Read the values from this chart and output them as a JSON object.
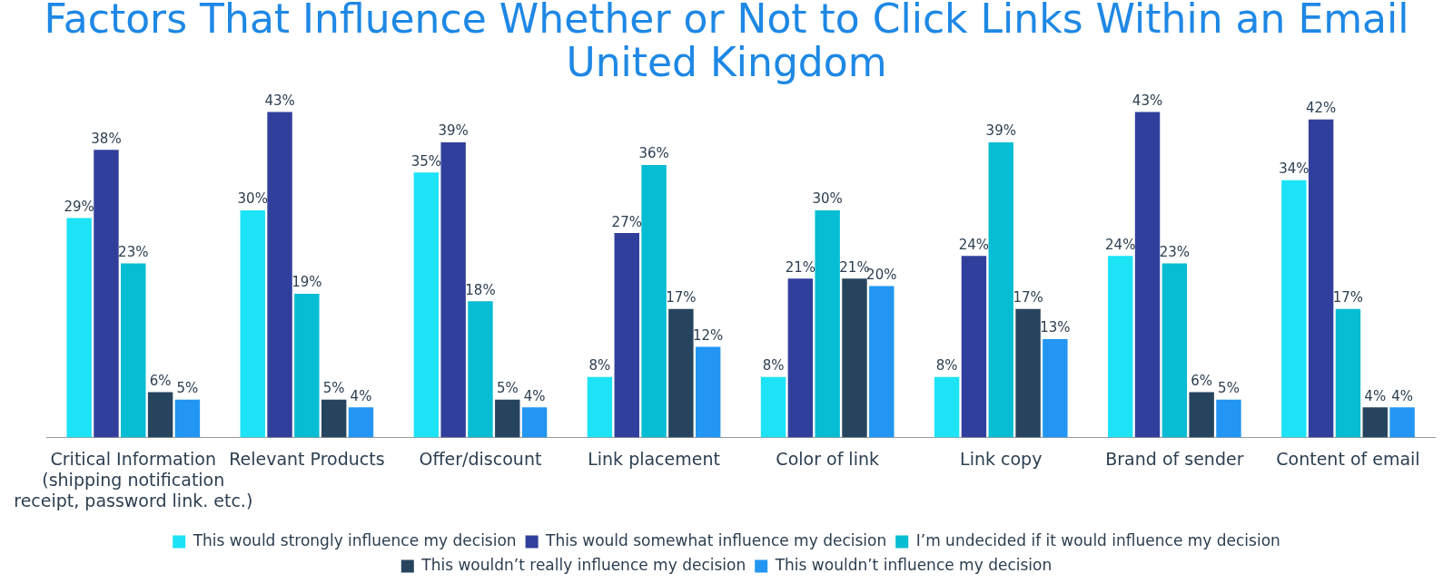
{
  "chart_data": {
    "type": "bar",
    "title": "Factors That Influence Whether or Not to Click Links Within an Email",
    "subtitle": "United Kingdom",
    "categories": [
      "Critical Information\n(shipping notification\nreceipt, password link. etc.)",
      "Relevant Products",
      "Offer/discount",
      "Link placement",
      "Color of link",
      "Link copy",
      "Brand of sender",
      "Content of email"
    ],
    "series": [
      {
        "name": "This would strongly influence my decision",
        "color": "#1de3f7",
        "values": [
          29,
          30,
          35,
          8,
          8,
          8,
          24,
          34
        ],
        "value_labels": [
          "29%",
          "30%",
          "35%",
          "8%",
          "8%",
          "8%",
          "24%",
          "34%"
        ]
      },
      {
        "name": "This would somewhat influence my decision",
        "color": "#313f9c",
        "values": [
          38,
          43,
          39,
          27,
          21,
          24,
          43,
          42
        ],
        "value_labels": [
          "38%",
          "43%",
          "39%",
          "27%",
          "21%",
          "24%",
          "43%",
          "42%"
        ]
      },
      {
        "name": "I’m undecided if it would influence my decision",
        "color": "#06bdd3",
        "values": [
          23,
          19,
          18,
          36,
          30,
          39,
          23,
          17
        ],
        "value_labels": [
          "23%",
          "19%",
          "18%",
          "36%",
          "30%",
          "39%",
          "23%",
          "17%"
        ]
      },
      {
        "name": "This wouldn’t really influence my decision",
        "color": "#27445e",
        "values": [
          6,
          5,
          5,
          17,
          21,
          17,
          6,
          4
        ],
        "value_labels": [
          "6%",
          "5%",
          "5%",
          "17%",
          "21%",
          "17%",
          "6%",
          "4%"
        ]
      },
      {
        "name": "This wouldn’t influence my decision",
        "color": "#2296f2",
        "values": [
          5,
          4,
          4,
          12,
          20,
          13,
          5,
          4
        ],
        "value_labels": [
          "5%",
          "4%",
          "4%",
          "12%",
          "20%",
          "13%",
          "5%",
          "4%"
        ]
      }
    ],
    "legend": "bottom",
    "grid": false
  }
}
